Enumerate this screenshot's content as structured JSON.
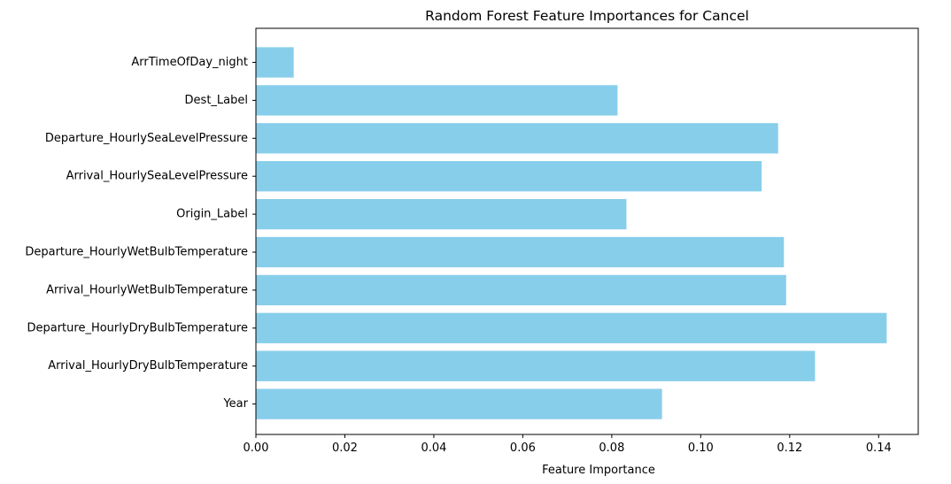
{
  "chart_data": {
    "type": "bar",
    "orientation": "horizontal",
    "title": "Random Forest Feature Importances for Cancel",
    "xlabel": "Feature Importance",
    "ylabel": "",
    "categories": [
      "Year",
      "Arrival_HourlyDryBulbTemperature",
      "Departure_HourlyDryBulbTemperature",
      "Arrival_HourlyWetBulbTemperature",
      "Departure_HourlyWetBulbTemperature",
      "Origin_Label",
      "Arrival_HourlySeaLevelPressure",
      "Departure_HourlySeaLevelPressure",
      "Dest_Label",
      "ArrTimeOfDay_night"
    ],
    "values": [
      0.0913,
      0.1257,
      0.1418,
      0.1192,
      0.1187,
      0.0833,
      0.1137,
      0.1174,
      0.0813,
      0.0085
    ],
    "xlim": [
      0,
      0.1489
    ],
    "xticks": [
      0.0,
      0.02,
      0.04,
      0.06,
      0.08,
      0.1,
      0.12,
      0.14
    ],
    "xtick_labels": [
      "0.00",
      "0.02",
      "0.04",
      "0.06",
      "0.08",
      "0.10",
      "0.12",
      "0.14"
    ],
    "bar_color": "#87ceeb",
    "grid": false,
    "legend": "none"
  }
}
